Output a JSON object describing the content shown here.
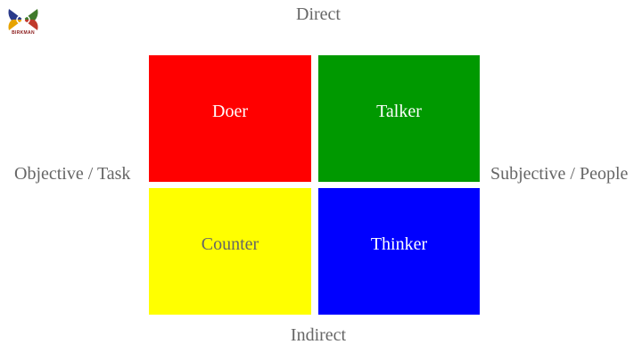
{
  "logo": {
    "text": "BIRKMAN",
    "colors": [
      "#2a3a8a",
      "#3f7a2a",
      "#c0392b",
      "#e6a300"
    ]
  },
  "axes": {
    "top": "Direct",
    "bottom": "Indirect",
    "left": "Objective / Task",
    "right": "Subjective / People"
  },
  "quadrants": [
    {
      "label": "Doer",
      "color": "#ff0000"
    },
    {
      "label": "Talker",
      "color": "#009900"
    },
    {
      "label": "Counter",
      "color": "#ffff00"
    },
    {
      "label": "Thinker",
      "color": "#0000ff"
    }
  ]
}
